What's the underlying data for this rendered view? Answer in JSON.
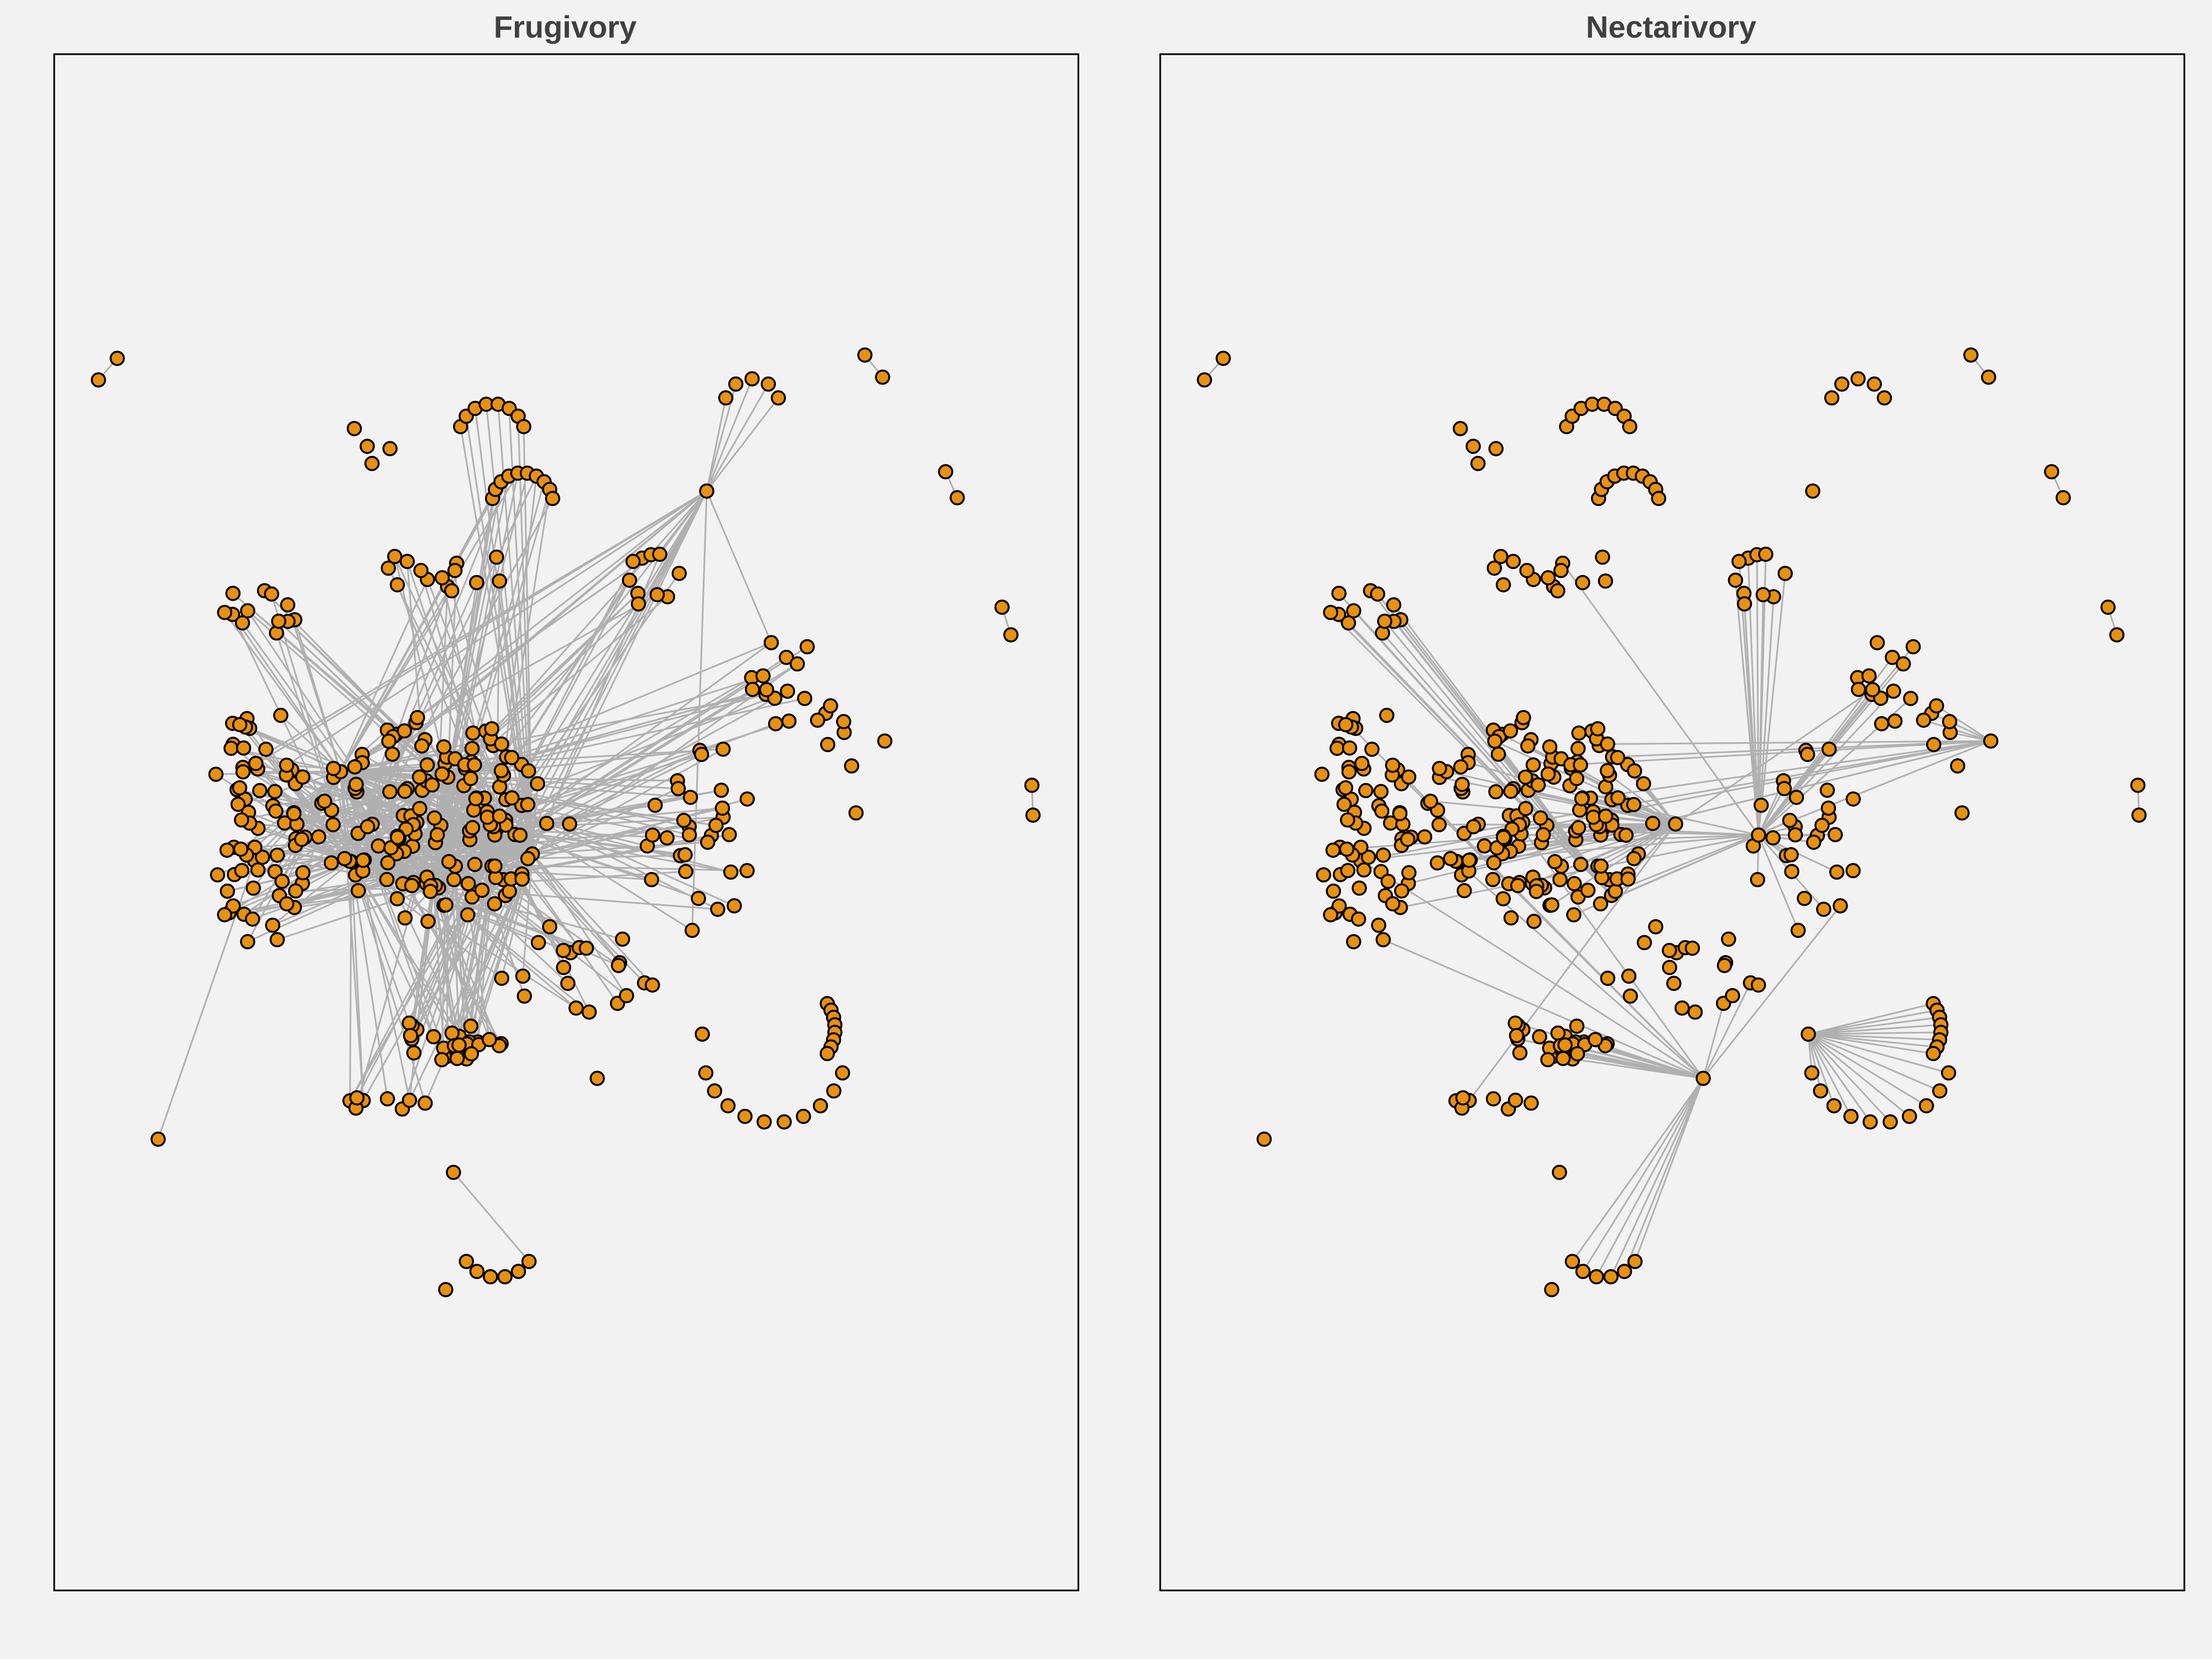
{
  "chart_data": [
    {
      "type": "network",
      "title": "Frugivory",
      "node_color": "#e8900f",
      "edge_color": "#b0b0b0",
      "background": "#f2f2f2"
    },
    {
      "type": "network",
      "title": "Nectarivory",
      "node_color": "#e8900f",
      "edge_color": "#b0b0b0",
      "background": "#f2f2f2"
    }
  ]
}
